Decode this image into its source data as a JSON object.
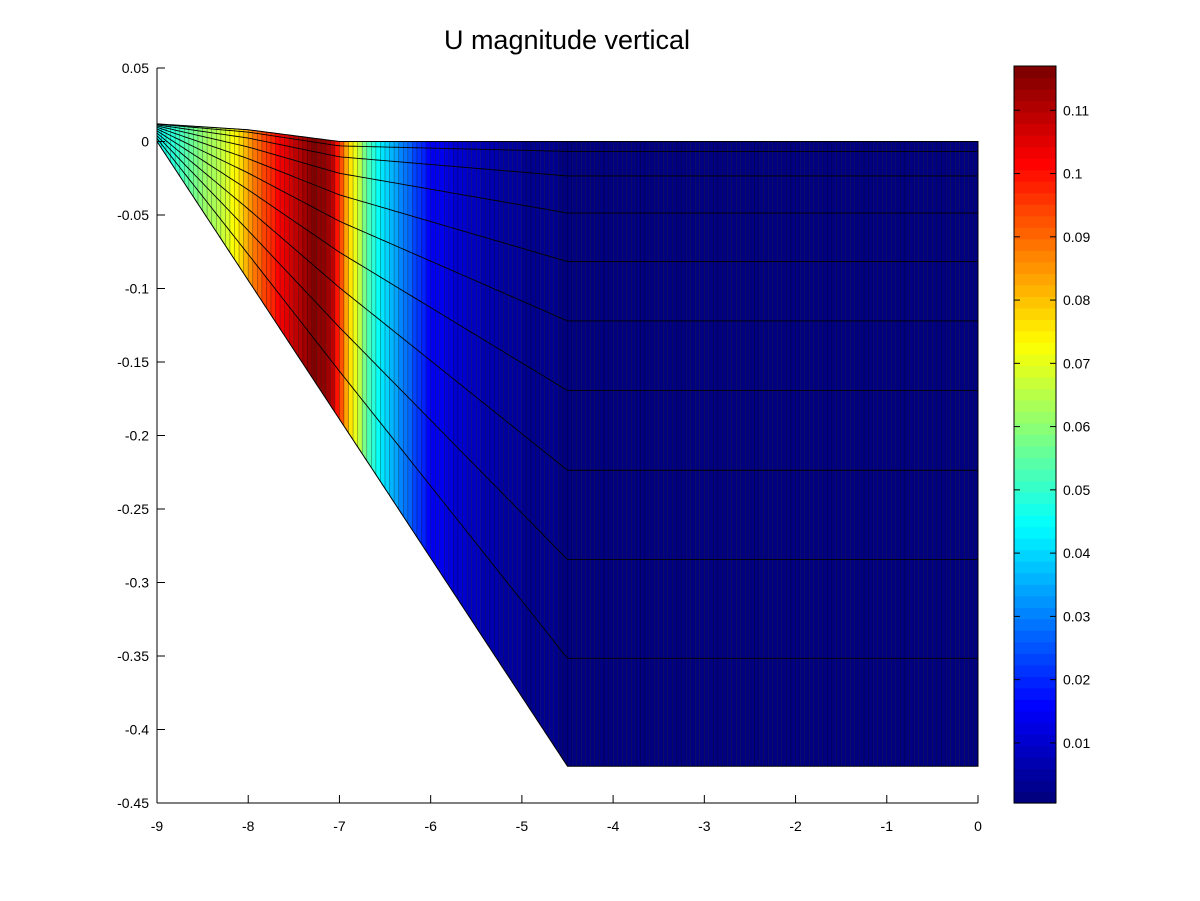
{
  "chart_data": {
    "type": "heatmap",
    "title": "U magnitude vertical",
    "xlabel": "",
    "ylabel": "",
    "xlim": [
      -9,
      0
    ],
    "ylim": [
      -0.45,
      0.05
    ],
    "x_ticks": [
      "-9",
      "-8",
      "-7",
      "-6",
      "-5",
      "-4",
      "-3",
      "-2",
      "-1",
      "0"
    ],
    "y_ticks": [
      "0.05",
      "0",
      "-0.05",
      "-0.1",
      "-0.15",
      "-0.2",
      "-0.25",
      "-0.3",
      "-0.35",
      "-0.4",
      "-0.45"
    ],
    "colorbar": {
      "colormap": "jet",
      "range": [
        0.0005,
        0.117
      ],
      "ticks": [
        "0.11",
        "0.1",
        "0.09",
        "0.08",
        "0.07",
        "0.06",
        "0.05",
        "0.04",
        "0.03",
        "0.02",
        "0.01"
      ]
    },
    "grid": false,
    "domain": {
      "surface_points": [
        [
          -9,
          0.012
        ],
        [
          -8,
          0.008
        ],
        [
          -7,
          0.0
        ],
        [
          -4.5,
          0.0
        ],
        [
          0,
          0.0
        ]
      ],
      "bottom_points": [
        [
          -9,
          0.0
        ],
        [
          -4.5,
          -0.425
        ],
        [
          0,
          -0.425
        ]
      ],
      "layer_count": 10,
      "x_columns": 180
    },
    "magnitude_profile": [
      {
        "x": -9.0,
        "u": 0.045
      },
      {
        "x": -8.8,
        "u": 0.05
      },
      {
        "x": -8.5,
        "u": 0.06
      },
      {
        "x": -8.2,
        "u": 0.07
      },
      {
        "x": -7.9,
        "u": 0.09
      },
      {
        "x": -7.6,
        "u": 0.105
      },
      {
        "x": -7.3,
        "u": 0.116
      },
      {
        "x": -7.1,
        "u": 0.112
      },
      {
        "x": -6.9,
        "u": 0.08
      },
      {
        "x": -6.7,
        "u": 0.055
      },
      {
        "x": -6.5,
        "u": 0.04
      },
      {
        "x": -6.2,
        "u": 0.025
      },
      {
        "x": -6.0,
        "u": 0.015
      },
      {
        "x": -5.5,
        "u": 0.008
      },
      {
        "x": -5.0,
        "u": 0.004
      },
      {
        "x": -4.5,
        "u": 0.002
      },
      {
        "x": 0.0,
        "u": 0.001
      }
    ]
  }
}
